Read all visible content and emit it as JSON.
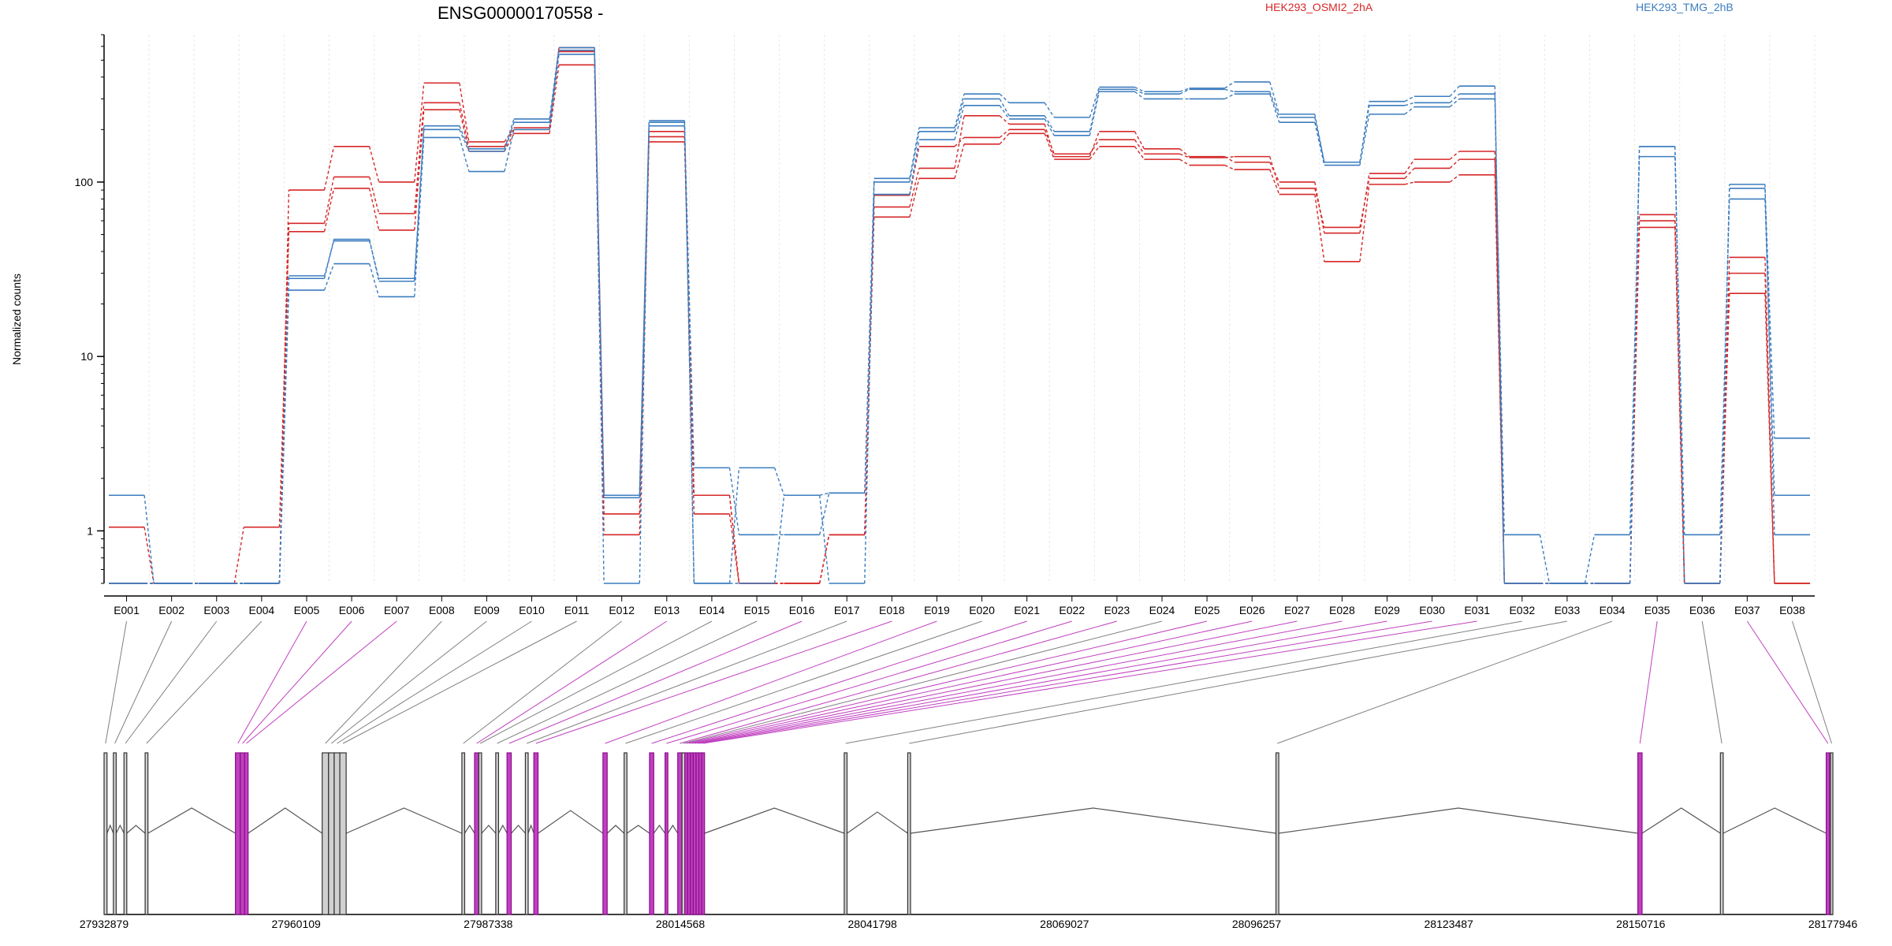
{
  "chart_data": {
    "type": "line",
    "title": "ENSG00000170558 -",
    "xlabel": "",
    "ylabel": "Normalized counts",
    "y_scale": "log",
    "ylim": [
      0.5,
      700
    ],
    "y_ticks": [
      {
        "value": 1,
        "label": "1"
      },
      {
        "value": 10,
        "label": "10"
      },
      {
        "value": 100,
        "label": "100"
      }
    ],
    "legend_placement": "top",
    "categories": [
      "E001",
      "E002",
      "E003",
      "E004",
      "E005",
      "E006",
      "E007",
      "E008",
      "E009",
      "E010",
      "E011",
      "E012",
      "E013",
      "E014",
      "E015",
      "E016",
      "E017",
      "E018",
      "E019",
      "E020",
      "E021",
      "E022",
      "E023",
      "E024",
      "E025",
      "E026",
      "E027",
      "E028",
      "E029",
      "E030",
      "E031",
      "E032",
      "E033",
      "E034",
      "E035",
      "E036",
      "E037",
      "E038"
    ],
    "series": [
      {
        "name": "HEK293_OSMI2_2hA",
        "color": "#d62728",
        "replicates": [
          [
            1.05,
            0.5,
            0.5,
            1.05,
            52,
            92,
            53,
            260,
            150,
            190,
            470,
            0.95,
            170,
            1.25,
            0.5,
            0.5,
            0.95,
            63,
            105,
            165,
            190,
            135,
            160,
            135,
            125,
            118,
            85,
            35,
            97,
            100,
            110,
            0.5,
            0.5,
            0.5,
            55,
            0.5,
            23,
            0.5
          ],
          [
            0.5,
            0.5,
            0.5,
            0.5,
            90,
            160,
            100,
            370,
            170,
            205,
            590,
            1.25,
            195,
            1.6,
            0.5,
            0.5,
            0.95,
            72,
            120,
            240,
            215,
            140,
            195,
            155,
            140,
            130,
            100,
            51,
            112,
            135,
            150,
            0.5,
            0.5,
            0.5,
            60,
            0.5,
            30,
            0.5
          ],
          [
            0.5,
            0.5,
            0.5,
            0.5,
            58,
            107,
            66,
            285,
            160,
            200,
            560,
            1.6,
            182,
            1.6,
            0.5,
            0.5,
            0.95,
            84,
            160,
            180,
            200,
            145,
            175,
            145,
            138,
            140,
            92,
            55,
            105,
            120,
            135,
            0.5,
            0.5,
            0.5,
            65,
            0.5,
            37,
            0.5
          ]
        ]
      },
      {
        "name": "HEK293_TMG_2hB",
        "color": "#3b7dbf",
        "replicates": [
          [
            1.6,
            0.5,
            0.5,
            0.5,
            24,
            34,
            22,
            180,
            115,
            200,
            540,
            1.6,
            210,
            2.3,
            0.95,
            0.95,
            1.65,
            85,
            175,
            275,
            230,
            185,
            330,
            300,
            300,
            320,
            220,
            125,
            245,
            270,
            300,
            0.95,
            0.5,
            0.95,
            140,
            0.95,
            80,
            1.6
          ],
          [
            0.5,
            0.5,
            0.5,
            0.5,
            28,
            47,
            27,
            200,
            150,
            220,
            570,
            1.55,
            220,
            0.5,
            2.3,
            1.6,
            0.5,
            100,
            195,
            300,
            240,
            195,
            340,
            320,
            340,
            330,
            235,
            130,
            275,
            285,
            320,
            0.5,
            0.5,
            0.5,
            160,
            0.5,
            92,
            3.4
          ],
          [
            0.5,
            0.5,
            0.5,
            0.5,
            29,
            46,
            28,
            210,
            155,
            230,
            590,
            0.5,
            225,
            0.5,
            0.5,
            1.6,
            1.65,
            105,
            205,
            320,
            285,
            235,
            350,
            330,
            345,
            375,
            245,
            130,
            290,
            310,
            355,
            0.5,
            0.5,
            0.5,
            160,
            0.5,
            97,
            0.95
          ]
        ]
      }
    ],
    "genomic_axis": {
      "ticks": [
        "27932879",
        "27960109",
        "27987338",
        "28014568",
        "28041798",
        "28069027",
        "28096257",
        "28123487",
        "28150716",
        "28177946"
      ],
      "start": 27932879,
      "end": 28177946,
      "exons": [
        {
          "id": "E001",
          "start": 27932879,
          "end": 27933300,
          "highlight": false
        },
        {
          "id": "E002",
          "start": 27934200,
          "end": 27934600,
          "highlight": false
        },
        {
          "id": "E003",
          "start": 27935700,
          "end": 27936100,
          "highlight": false
        },
        {
          "id": "E004",
          "start": 27938700,
          "end": 27939100,
          "highlight": false
        },
        {
          "id": "E005",
          "start": 27951500,
          "end": 27952200,
          "highlight": true
        },
        {
          "id": "E006",
          "start": 27952200,
          "end": 27952800,
          "highlight": true
        },
        {
          "id": "E007",
          "start": 27952800,
          "end": 27953300,
          "highlight": true
        },
        {
          "id": "E008",
          "start": 27963800,
          "end": 27964700,
          "highlight": false
        },
        {
          "id": "E009",
          "start": 27964700,
          "end": 27965500,
          "highlight": false
        },
        {
          "id": "E010",
          "start": 27965500,
          "end": 27966300,
          "highlight": false
        },
        {
          "id": "E011",
          "start": 27966300,
          "end": 27967200,
          "highlight": false
        },
        {
          "id": "E012",
          "start": 27983600,
          "end": 27984000,
          "highlight": false
        },
        {
          "id": "E013",
          "start": 27985400,
          "end": 27986000,
          "highlight": true
        },
        {
          "id": "E014",
          "start": 27986000,
          "end": 27986400,
          "highlight": false
        },
        {
          "id": "E015",
          "start": 27988400,
          "end": 27988800,
          "highlight": false
        },
        {
          "id": "E016",
          "start": 27990000,
          "end": 27990600,
          "highlight": true
        },
        {
          "id": "E017",
          "start": 27992600,
          "end": 27993000,
          "highlight": false
        },
        {
          "id": "E018",
          "start": 27993800,
          "end": 27994400,
          "highlight": true
        },
        {
          "id": "E019",
          "start": 28003600,
          "end": 28004200,
          "highlight": true
        },
        {
          "id": "E020",
          "start": 28006600,
          "end": 28007000,
          "highlight": false
        },
        {
          "id": "E021",
          "start": 28010200,
          "end": 28010800,
          "highlight": true
        },
        {
          "id": "E022",
          "start": 28012400,
          "end": 28012800,
          "highlight": true
        },
        {
          "id": "E023",
          "start": 28014200,
          "end": 28014800,
          "highlight": true
        },
        {
          "id": "E024",
          "start": 28014800,
          "end": 28015200,
          "highlight": false
        },
        {
          "id": "E025",
          "start": 28015200,
          "end": 28015600,
          "highlight": true
        },
        {
          "id": "E026",
          "start": 28015600,
          "end": 28016000,
          "highlight": true
        },
        {
          "id": "E027",
          "start": 28016000,
          "end": 28016400,
          "highlight": true
        },
        {
          "id": "E028",
          "start": 28016400,
          "end": 28016800,
          "highlight": true
        },
        {
          "id": "E029",
          "start": 28016800,
          "end": 28017200,
          "highlight": true
        },
        {
          "id": "E030",
          "start": 28017200,
          "end": 28017600,
          "highlight": true
        },
        {
          "id": "E031",
          "start": 28017600,
          "end": 28018000,
          "highlight": true
        },
        {
          "id": "E032",
          "start": 28037800,
          "end": 28038200,
          "highlight": false
        },
        {
          "id": "E033",
          "start": 28046800,
          "end": 28047200,
          "highlight": false
        },
        {
          "id": "E034",
          "start": 28099000,
          "end": 28099400,
          "highlight": false
        },
        {
          "id": "E035",
          "start": 28150300,
          "end": 28150900,
          "highlight": true
        },
        {
          "id": "E036",
          "start": 28162000,
          "end": 28162400,
          "highlight": false
        },
        {
          "id": "E037",
          "start": 28177000,
          "end": 28177500,
          "highlight": true
        },
        {
          "id": "E038",
          "start": 28177600,
          "end": 28177946,
          "highlight": false
        }
      ]
    },
    "colors": {
      "highlight": "#c040c0",
      "normal": "#808080",
      "grid": "#e8e8e8"
    }
  }
}
